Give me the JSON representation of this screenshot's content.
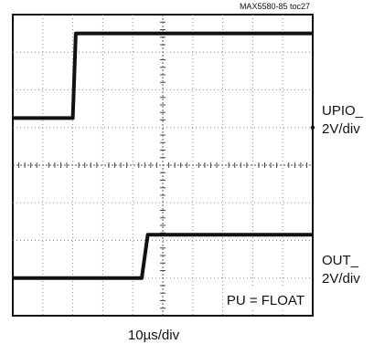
{
  "chart_data": {
    "type": "line",
    "title": "",
    "figure_id": "MAX5580-85 toc27",
    "xlabel": "10µs/div",
    "ylabel": "",
    "x_divisions": 10,
    "y_divisions": 8,
    "grid": true,
    "note": "PU = FLOAT",
    "series": [
      {
        "name": "UPIO_",
        "scale_line1": "UPIO_",
        "scale_line2": "2V/div",
        "color": "#111111",
        "x_div": [
          0,
          2.0,
          2.1,
          10
        ],
        "y_div": [
          5.25,
          5.25,
          7.5,
          7.5
        ]
      },
      {
        "name": "OUT_",
        "scale_line1": "OUT_",
        "scale_line2": "2V/div",
        "color": "#111111",
        "x_div": [
          0,
          4.3,
          4.5,
          10
        ],
        "y_div": [
          1.0,
          1.0,
          2.15,
          2.15
        ]
      }
    ]
  }
}
